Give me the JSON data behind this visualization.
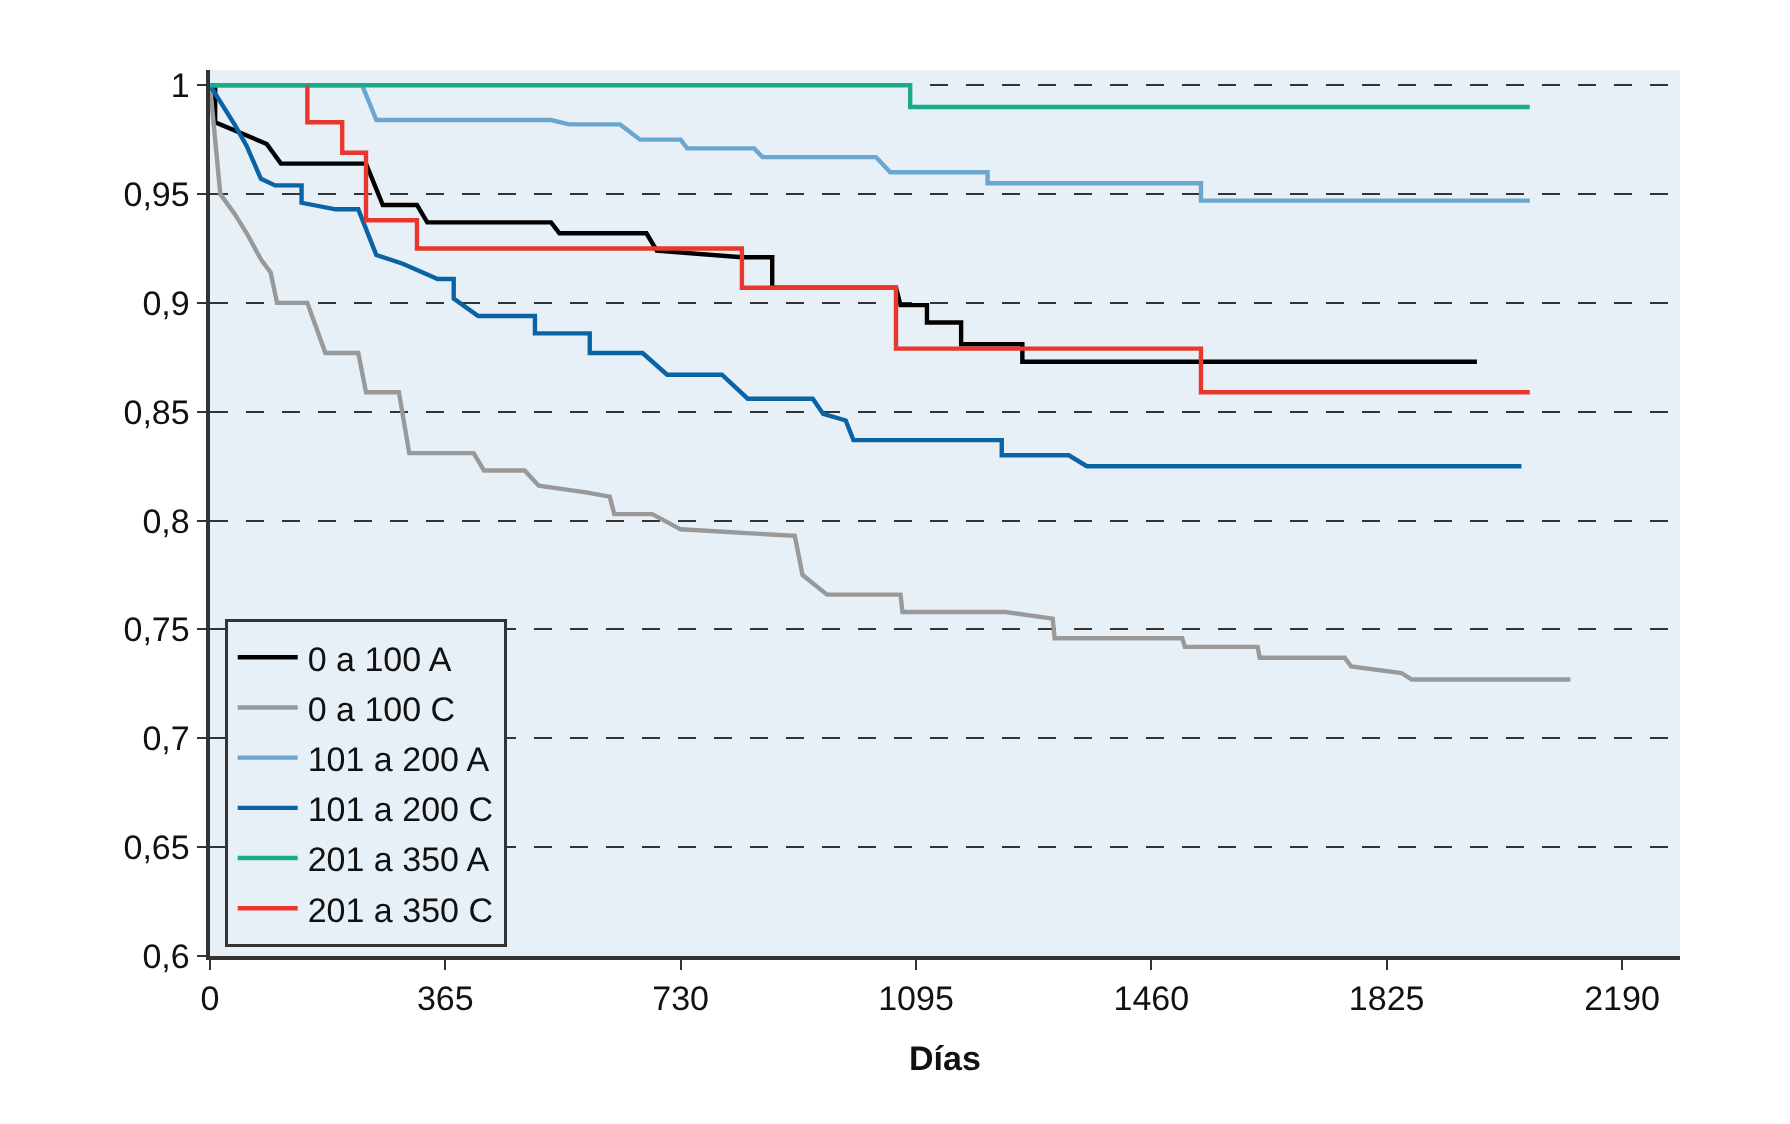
{
  "chart_data": {
    "type": "line",
    "xlabel": "Días",
    "xlim": [
      0,
      2280
    ],
    "xticks": [
      0,
      365,
      730,
      1095,
      1460,
      1825,
      2190
    ],
    "ylim": [
      0.6,
      1.007
    ],
    "yticks": [
      {
        "value": 0.6,
        "label": "0,6"
      },
      {
        "value": 0.65,
        "label": "0,65"
      },
      {
        "value": 0.7,
        "label": "0,7"
      },
      {
        "value": 0.75,
        "label": "0,75"
      },
      {
        "value": 0.8,
        "label": "0,8"
      },
      {
        "value": 0.85,
        "label": "0,85"
      },
      {
        "value": 0.9,
        "label": "0,9"
      },
      {
        "value": 0.95,
        "label": "0,95"
      },
      {
        "value": 1,
        "label": "1"
      }
    ],
    "grid": "y",
    "legend": "bottom left",
    "marker": "none",
    "series": [
      {
        "name": "0 a 100 A",
        "color": "#000000",
        "x": [
          0,
          8,
          8,
          88,
          110,
          242,
          268,
          321,
          337,
          529,
          542,
          677,
          693,
          825,
          872,
          872,
          1064,
          1071,
          1112,
          1112,
          1165,
          1165,
          1260,
          1260,
          1965
        ],
        "values": [
          1,
          1,
          0.983,
          0.973,
          0.964,
          0.964,
          0.945,
          0.945,
          0.937,
          0.937,
          0.932,
          0.932,
          0.924,
          0.921,
          0.921,
          0.907,
          0.907,
          0.899,
          0.899,
          0.891,
          0.891,
          0.881,
          0.881,
          0.873,
          0.873
        ]
      },
      {
        "name": "0 a 100 C",
        "color": "#999999",
        "x": [
          0,
          16,
          38,
          57,
          79,
          94,
          104,
          151,
          179,
          230,
          242,
          293,
          309,
          409,
          425,
          488,
          510,
          583,
          620,
          627,
          686,
          730,
          907,
          919,
          957,
          1071,
          1074,
          1234,
          1307,
          1310,
          1508,
          1512,
          1625,
          1628,
          1760,
          1770,
          1848,
          1864,
          2110
        ],
        "values": [
          1,
          0.95,
          0.941,
          0.932,
          0.92,
          0.914,
          0.9,
          0.9,
          0.877,
          0.877,
          0.859,
          0.859,
          0.831,
          0.831,
          0.823,
          0.823,
          0.816,
          0.813,
          0.811,
          0.803,
          0.803,
          0.796,
          0.793,
          0.775,
          0.766,
          0.766,
          0.758,
          0.758,
          0.755,
          0.746,
          0.746,
          0.742,
          0.742,
          0.737,
          0.737,
          0.733,
          0.73,
          0.727,
          0.727
        ]
      },
      {
        "name": "101 a 200 A",
        "color": "#6aa6d0",
        "x": [
          0,
          236,
          258,
          529,
          557,
          636,
          667,
          730,
          740,
          844,
          857,
          1033,
          1055,
          1206,
          1206,
          1537,
          1537,
          2047
        ],
        "values": [
          1,
          1,
          0.984,
          0.984,
          0.982,
          0.982,
          0.975,
          0.975,
          0.971,
          0.971,
          0.967,
          0.967,
          0.96,
          0.96,
          0.955,
          0.955,
          0.947,
          0.947
        ]
      },
      {
        "name": "101 a 200 C",
        "color": "#0a64a4",
        "x": [
          0,
          38,
          57,
          79,
          101,
          142,
          142,
          195,
          230,
          258,
          299,
          353,
          378,
          378,
          416,
          504,
          504,
          589,
          589,
          671,
          709,
          794,
          834,
          935,
          951,
          986,
          998,
          1228,
          1228,
          1332,
          1360,
          2034
        ],
        "values": [
          1,
          0.982,
          0.972,
          0.957,
          0.954,
          0.954,
          0.946,
          0.943,
          0.943,
          0.922,
          0.918,
          0.911,
          0.911,
          0.902,
          0.894,
          0.894,
          0.886,
          0.886,
          0.877,
          0.877,
          0.867,
          0.867,
          0.856,
          0.856,
          0.849,
          0.846,
          0.837,
          0.837,
          0.83,
          0.83,
          0.825,
          0.825
        ]
      },
      {
        "name": "201 a 350 A",
        "color": "#1aab8a",
        "x": [
          0,
          1086,
          1086,
          2047
        ],
        "values": [
          1,
          1,
          0.99,
          0.99
        ]
      },
      {
        "name": "201 a 350 C",
        "color": "#e8372c",
        "x": [
          151,
          151,
          205,
          205,
          242,
          242,
          321,
          321,
          825,
          825,
          1064,
          1064,
          1537,
          1537,
          2047
        ],
        "values": [
          1,
          0.983,
          0.983,
          0.969,
          0.969,
          0.938,
          0.938,
          0.925,
          0.925,
          0.907,
          0.907,
          0.879,
          0.879,
          0.859,
          0.859
        ]
      }
    ]
  }
}
